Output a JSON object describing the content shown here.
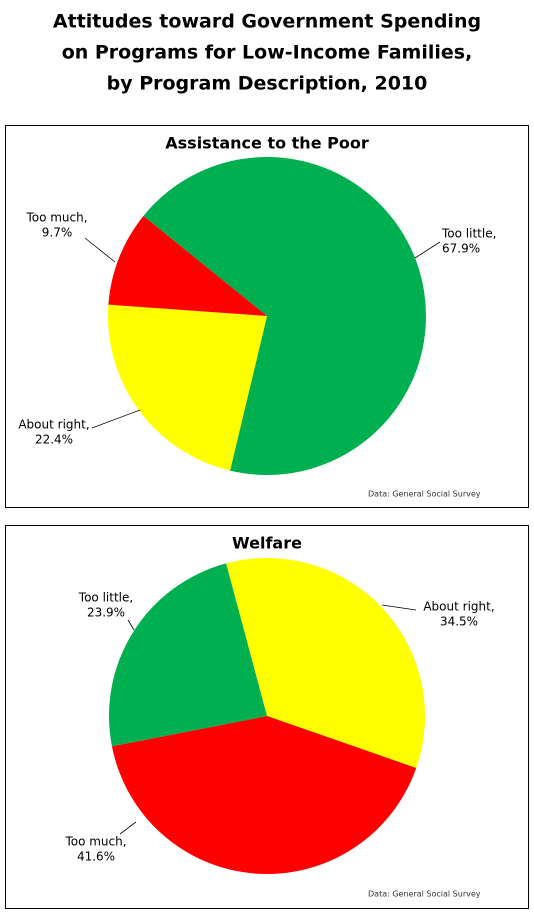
{
  "title": [
    "Attitudes toward Government Spending",
    "on Programs for Low-Income Families,",
    "by Program Description, 2010"
  ],
  "chart_data": [
    {
      "type": "pie",
      "title": "Assistance to the Poor",
      "categories": [
        "Too little,",
        "About right,",
        "Too much,"
      ],
      "values": [
        67.9,
        22.4,
        9.7
      ],
      "value_labels": [
        "67.9%",
        "22.4%",
        "9.7%"
      ],
      "colors": [
        "#00b050",
        "#ffff00",
        "#ff0000"
      ],
      "source": "Data: General Social Survey"
    },
    {
      "type": "pie",
      "title": "Welfare",
      "categories": [
        "About right,",
        "Too much,",
        "Too little,"
      ],
      "values": [
        34.5,
        41.6,
        23.9
      ],
      "value_labels": [
        "34.5%",
        "41.6%",
        "23.9%"
      ],
      "colors": [
        "#ffff00",
        "#ff0000",
        "#00b050"
      ],
      "source": "Data: General Social Survey"
    }
  ]
}
